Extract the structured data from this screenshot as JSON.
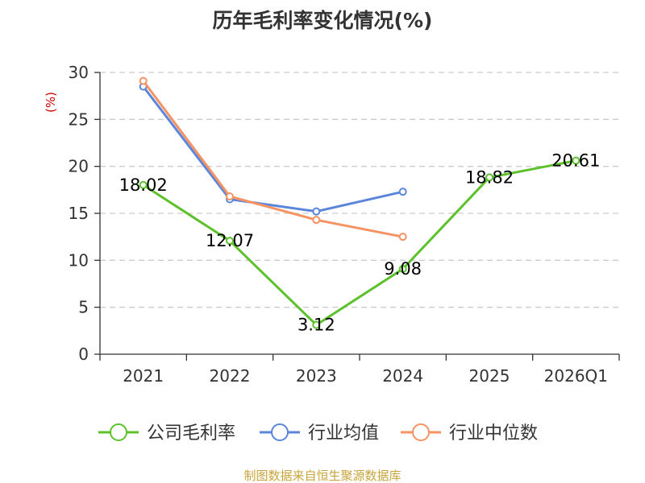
{
  "chart_data": {
    "type": "line",
    "title": "历年毛利率变化情况(%)",
    "ylabel": "(%)",
    "categories": [
      "2021",
      "2022",
      "2023",
      "2024",
      "2025",
      "2026Q1"
    ],
    "ylim": [
      0,
      30
    ],
    "yticks": [
      0,
      5,
      10,
      15,
      20,
      25,
      30
    ],
    "grid": true,
    "legend_position": "bottom",
    "series": [
      {
        "name": "公司毛利率",
        "color": "#5cc12b",
        "values": [
          18.02,
          12.07,
          3.12,
          9.08,
          18.82,
          20.61
        ],
        "data_labels": [
          "18.02",
          "12.07",
          "3.12",
          "9.08",
          "18.82",
          "20.61"
        ]
      },
      {
        "name": "行业均值",
        "color": "#5b86db",
        "values": [
          28.5,
          16.5,
          15.2,
          17.3,
          null,
          null
        ]
      },
      {
        "name": "行业中位数",
        "color": "#f59363",
        "values": [
          29.1,
          16.8,
          14.3,
          12.5,
          null,
          null
        ]
      }
    ]
  },
  "source": "制图数据来自恒生聚源数据库",
  "colors": {
    "title": "#333333",
    "axis": "#333333",
    "grid": "#cccccc",
    "ylabel": "#cc0000",
    "source": "#c8a43c"
  }
}
